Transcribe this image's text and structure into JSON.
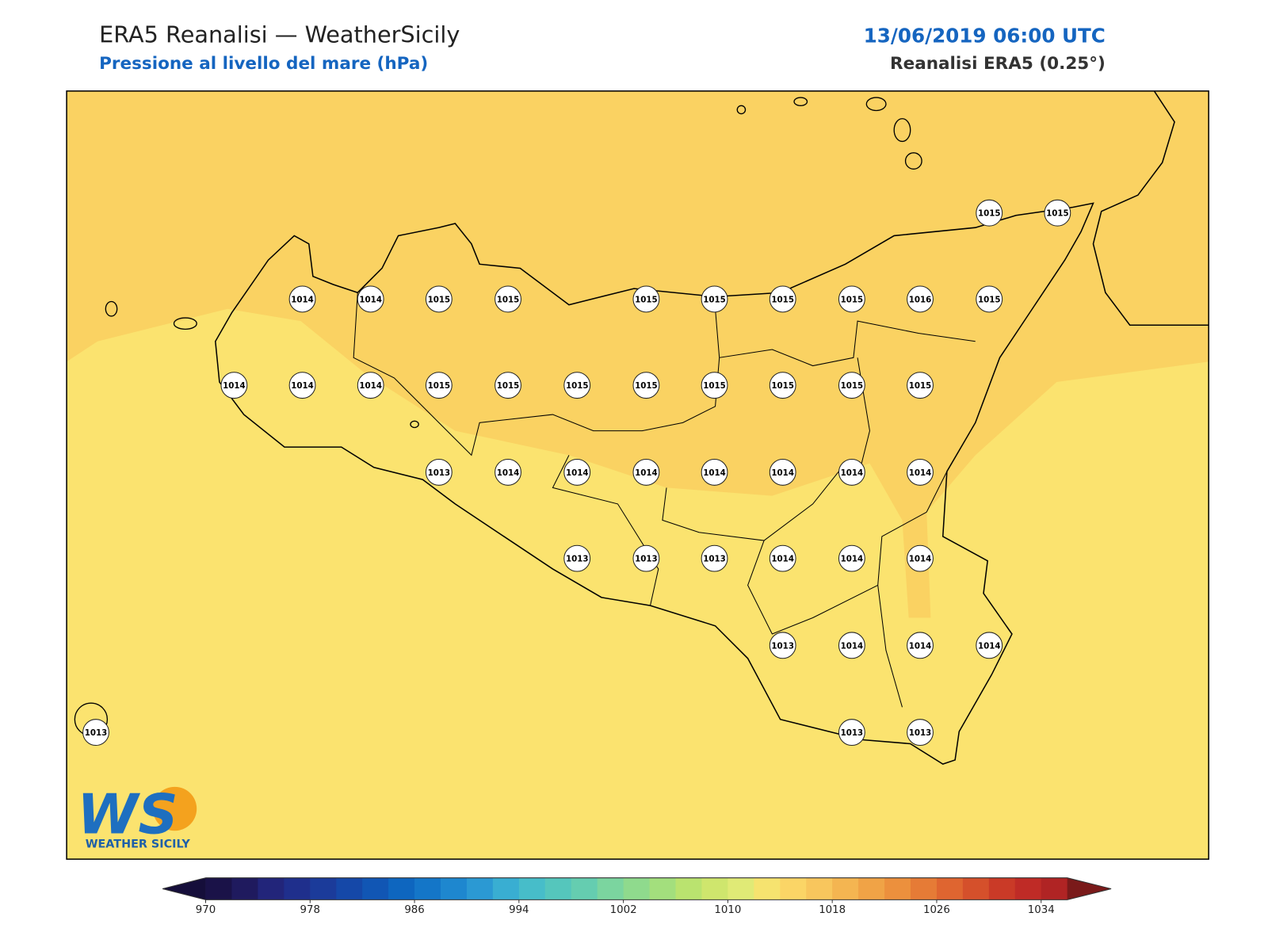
{
  "header": {
    "title": "ERA5 Reanalisi — WeatherSicily",
    "subtitle": "Pressione al livello del mare (hPa)",
    "datetime": "13/06/2019 06:00 UTC",
    "source": "Reanalisi ERA5 (0.25°)"
  },
  "logo": {
    "mark": "WS",
    "text": "WEATHER SICILY"
  },
  "map": {
    "pressure_labels": [
      1015,
      1015,
      1014,
      1014,
      1015,
      1015,
      1015,
      1015,
      1015,
      1015,
      1016,
      1015,
      1014,
      1014,
      1014,
      1015,
      1015,
      1015,
      1015,
      1015,
      1015,
      1015,
      1015,
      1013,
      1014,
      1014,
      1014,
      1014,
      1014,
      1014,
      1014,
      1013,
      1013,
      1013,
      1014,
      1014,
      1014,
      1013,
      1014,
      1014,
      1014,
      1013,
      1013,
      1013
    ]
  },
  "colorbar": {
    "clim": [
      970,
      1036
    ],
    "ticks": [
      970,
      978,
      986,
      994,
      1002,
      1010,
      1018,
      1026,
      1034
    ],
    "colors": [
      "#1a1248",
      "#1f1a5e",
      "#22257a",
      "#1f2f8c",
      "#1b3b9a",
      "#1548a8",
      "#1156b4",
      "#0e66bf",
      "#1476c8",
      "#1e87cf",
      "#2b99d3",
      "#39aed2",
      "#47bdc9",
      "#55c6bc",
      "#65cdb0",
      "#7bd59f",
      "#8fda8d",
      "#a3df7d",
      "#bae36f",
      "#cfe66d",
      "#e0ea76",
      "#f6e36f",
      "#fbd566",
      "#f8c65d",
      "#f4b551",
      "#f0a346",
      "#ec903d",
      "#e67b36",
      "#df6530",
      "#d5502b",
      "#ca3a27",
      "#bf2b26",
      "#b02424"
    ],
    "under_color": "#150e3a",
    "over_color": "#7a1a1a"
  }
}
